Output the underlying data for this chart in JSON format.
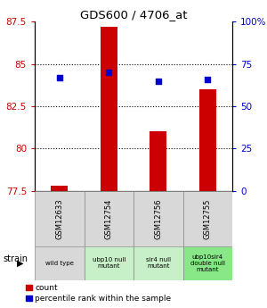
{
  "title": "GDS600 / 4706_at",
  "samples": [
    "GSM12633",
    "GSM12754",
    "GSM12756",
    "GSM12755"
  ],
  "strains": [
    "wild type",
    "ubp10 null\nmutant",
    "sir4 null\nmutant",
    "ubp10sir4\ndouble null\nmutant"
  ],
  "strain_colors": [
    "#d8d8d8",
    "#c8f0c8",
    "#c8f0c8",
    "#88e888"
  ],
  "gsm_color": "#d8d8d8",
  "bar_values": [
    77.8,
    87.2,
    81.0,
    83.5
  ],
  "dot_values": [
    84.2,
    84.5,
    84.0,
    84.1
  ],
  "ylim_left": [
    77.5,
    87.5
  ],
  "ylim_right": [
    0,
    100
  ],
  "yticks_left": [
    77.5,
    80.0,
    82.5,
    85.0,
    87.5
  ],
  "yticks_right": [
    0,
    25,
    50,
    75,
    100
  ],
  "bar_color": "#cc0000",
  "dot_color": "#0000cc",
  "background_color": "#ffffff",
  "left_label_color": "#cc0000",
  "right_label_color": "#0000cc",
  "bar_width": 0.35,
  "figsize": [
    3.0,
    3.45
  ],
  "dpi": 100
}
